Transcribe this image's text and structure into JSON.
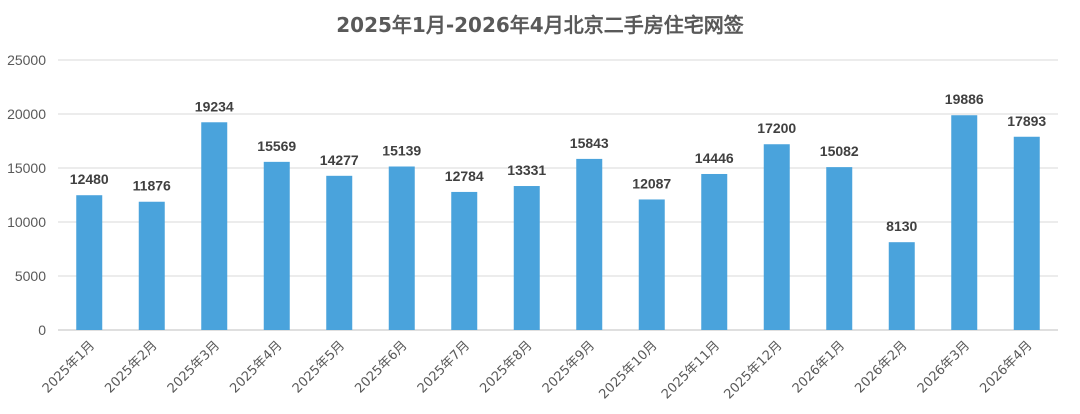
{
  "chart_data": {
    "type": "bar",
    "title": "2025年1月-2026年4月北京二手房住宅网签",
    "xlabel": "",
    "ylabel": "",
    "categories": [
      "2025年1月",
      "2025年2月",
      "2025年3月",
      "2025年4月",
      "2025年5月",
      "2025年6月",
      "2025年7月",
      "2025年8月",
      "2025年9月",
      "2025年10月",
      "2025年11月",
      "2025年12月",
      "2026年1月",
      "2026年2月",
      "2026年3月",
      "2026年4月"
    ],
    "values": [
      12480,
      11876,
      19234,
      15569,
      14277,
      15139,
      12784,
      13331,
      15843,
      12087,
      14446,
      17200,
      15082,
      8130,
      19886,
      17893
    ],
    "ylim": [
      0,
      25000
    ],
    "yticks": [
      "0",
      "5000",
      "10000",
      "15000",
      "20000",
      "25000"
    ],
    "grid": true,
    "legend": "none",
    "bar_color": "#4aa3dc",
    "data_labels": true
  },
  "colors": {
    "bar": "#4aa3dc",
    "grid": "#d9d9d9",
    "text": "#595959"
  }
}
